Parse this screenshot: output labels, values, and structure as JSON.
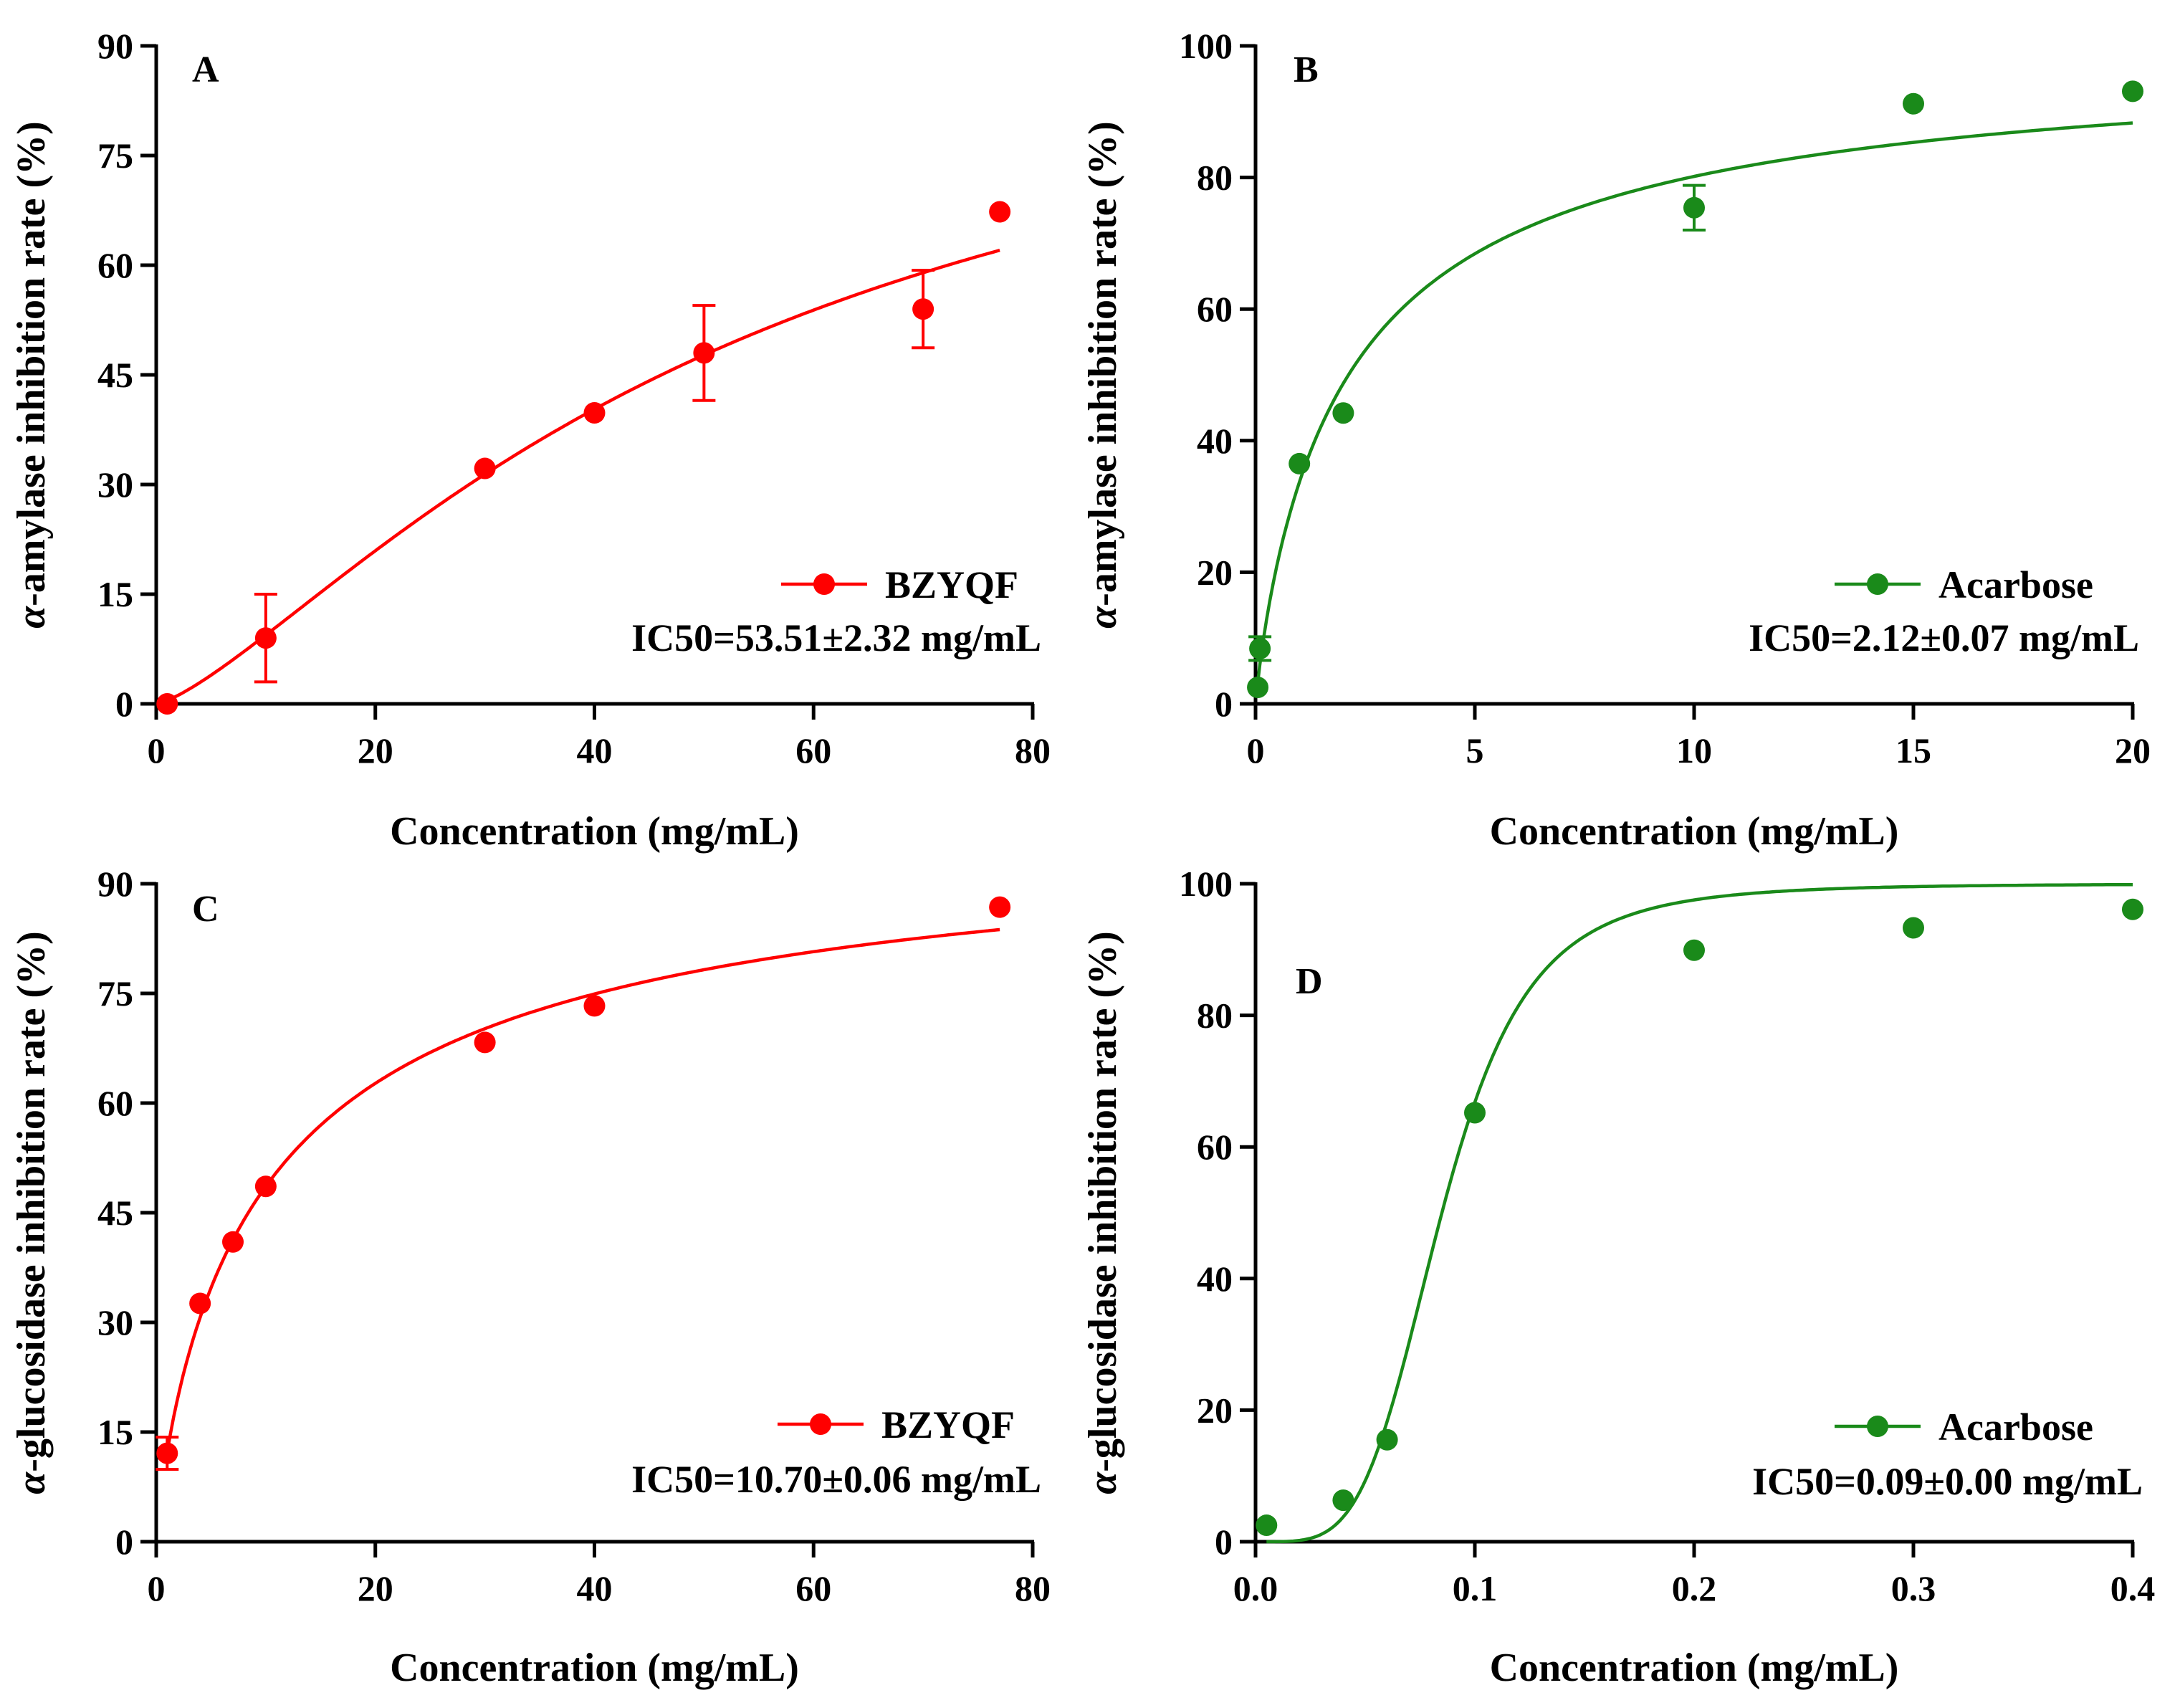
{
  "chart_data": [
    {
      "type": "scatter",
      "panel": "A",
      "xlabel": "Concentration (mg/mL)",
      "ylabel_greek": "α",
      "ylabel": "-amylase  inhibition rate (%)",
      "xlim": [
        0,
        80
      ],
      "ylim": [
        0,
        90
      ],
      "xticks": [
        0,
        20,
        40,
        60,
        80
      ],
      "yticks": [
        0,
        15,
        30,
        45,
        60,
        75,
        90
      ],
      "xtick_labels": [
        "0",
        "20",
        "40",
        "60",
        "80"
      ],
      "ytick_labels": [
        "0",
        "15",
        "30",
        "45",
        "60",
        "75",
        "90"
      ],
      "color": "#ff0000",
      "legend": "BZYQF",
      "annotation": "IC50=53.51±2.32 mg/mL",
      "series": [
        {
          "name": "BZYQF",
          "x": [
            1,
            10,
            30,
            40,
            50,
            70,
            77
          ],
          "y": [
            0,
            9,
            32.2,
            39.8,
            48,
            54,
            67.3
          ],
          "err": [
            0,
            6,
            0,
            0,
            6.5,
            5.3,
            0
          ],
          "fit": {
            "model": "hill",
            "bottom": 0,
            "top": 100,
            "ec50": 53.51,
            "hill": 1.35,
            "xrange": [
              1,
              77
            ]
          }
        }
      ]
    },
    {
      "type": "scatter",
      "panel": "B",
      "xlabel": "Concentration (mg/mL)",
      "ylabel_greek": "α",
      "ylabel": "-amylase inhibition rate (%)",
      "xlim": [
        0,
        20
      ],
      "ylim": [
        0,
        100
      ],
      "xticks": [
        0,
        5,
        10,
        15,
        20
      ],
      "yticks": [
        0,
        20,
        40,
        60,
        80,
        100
      ],
      "xtick_labels": [
        "0",
        "5",
        "10",
        "15",
        "20"
      ],
      "ytick_labels": [
        "0",
        "20",
        "40",
        "60",
        "80",
        "100"
      ],
      "color": "#1a8a1a",
      "legend": "Acarbose",
      "annotation": "IC50=2.12±0.07 mg/mL",
      "series": [
        {
          "name": "Acarbose",
          "x": [
            0.05,
            0.1,
            1,
            2,
            10,
            15,
            20
          ],
          "y": [
            2.5,
            8.4,
            36.5,
            44.2,
            75.4,
            91.2,
            93.1
          ],
          "err": [
            0,
            1.8,
            0,
            0,
            3.4,
            0,
            0
          ],
          "fit": {
            "model": "hill",
            "bottom": 0,
            "top": 100,
            "ec50": 2.12,
            "hill": 0.9,
            "xrange": [
              0.02,
              20
            ]
          }
        }
      ]
    },
    {
      "type": "scatter",
      "panel": "C",
      "xlabel": "Concentration (mg/mL)",
      "ylabel_greek": "α",
      "ylabel": "-glucosidase inhibition rate (%)",
      "xlim": [
        0,
        80
      ],
      "ylim": [
        0,
        90
      ],
      "xticks": [
        0,
        20,
        40,
        60,
        80
      ],
      "yticks": [
        0,
        15,
        30,
        45,
        60,
        75,
        90
      ],
      "xtick_labels": [
        "0",
        "20",
        "40",
        "60",
        "80"
      ],
      "ytick_labels": [
        "0",
        "15",
        "30",
        "45",
        "60",
        "75",
        "90"
      ],
      "color": "#ff0000",
      "legend": "BZYQF",
      "annotation": "IC50=10.70±0.06 mg/mL",
      "series": [
        {
          "name": "BZYQF",
          "x": [
            1,
            4,
            7,
            10,
            30,
            40,
            77
          ],
          "y": [
            12.1,
            32.6,
            41,
            48.6,
            68.3,
            73.3,
            86.8
          ],
          "err": [
            2.2,
            0,
            0,
            0,
            0,
            0,
            0
          ],
          "fit": {
            "model": "hill",
            "bottom": 0,
            "top": 100,
            "ec50": 10.7,
            "hill": 0.83,
            "xrange": [
              1,
              77
            ]
          }
        }
      ]
    },
    {
      "type": "scatter",
      "panel": "D",
      "xlabel": "Concentration (mg/mL)",
      "ylabel_greek": "α",
      "ylabel": "-glucosidase inhibition rate (%)",
      "xlim": [
        0,
        0.4
      ],
      "ylim": [
        0,
        100
      ],
      "xticks": [
        0,
        0.1,
        0.2,
        0.3,
        0.4
      ],
      "yticks": [
        0,
        20,
        40,
        60,
        80,
        100
      ],
      "xtick_labels": [
        "0.0",
        "0.1",
        "0.2",
        "0.3",
        "0.4"
      ],
      "ytick_labels": [
        "0",
        "20",
        "40",
        "60",
        "80",
        "100"
      ],
      "color": "#1a8a1a",
      "legend": "Acarbose",
      "annotation": "IC50=0.09±0.00 mg/mL",
      "series": [
        {
          "name": "Acarbose",
          "x": [
            0.005,
            0.04,
            0.06,
            0.1,
            0.2,
            0.3,
            0.4
          ],
          "y": [
            2.5,
            6.3,
            15.5,
            65.2,
            89.9,
            93.3,
            96.1
          ],
          "err": [
            0,
            0,
            0,
            0,
            0,
            0,
            0
          ],
          "fit": {
            "model": "hill",
            "bottom": 0,
            "top": 100,
            "ec50": 0.085,
            "hill": 4.3,
            "xrange": [
              0.005,
              0.4
            ]
          }
        }
      ]
    }
  ]
}
